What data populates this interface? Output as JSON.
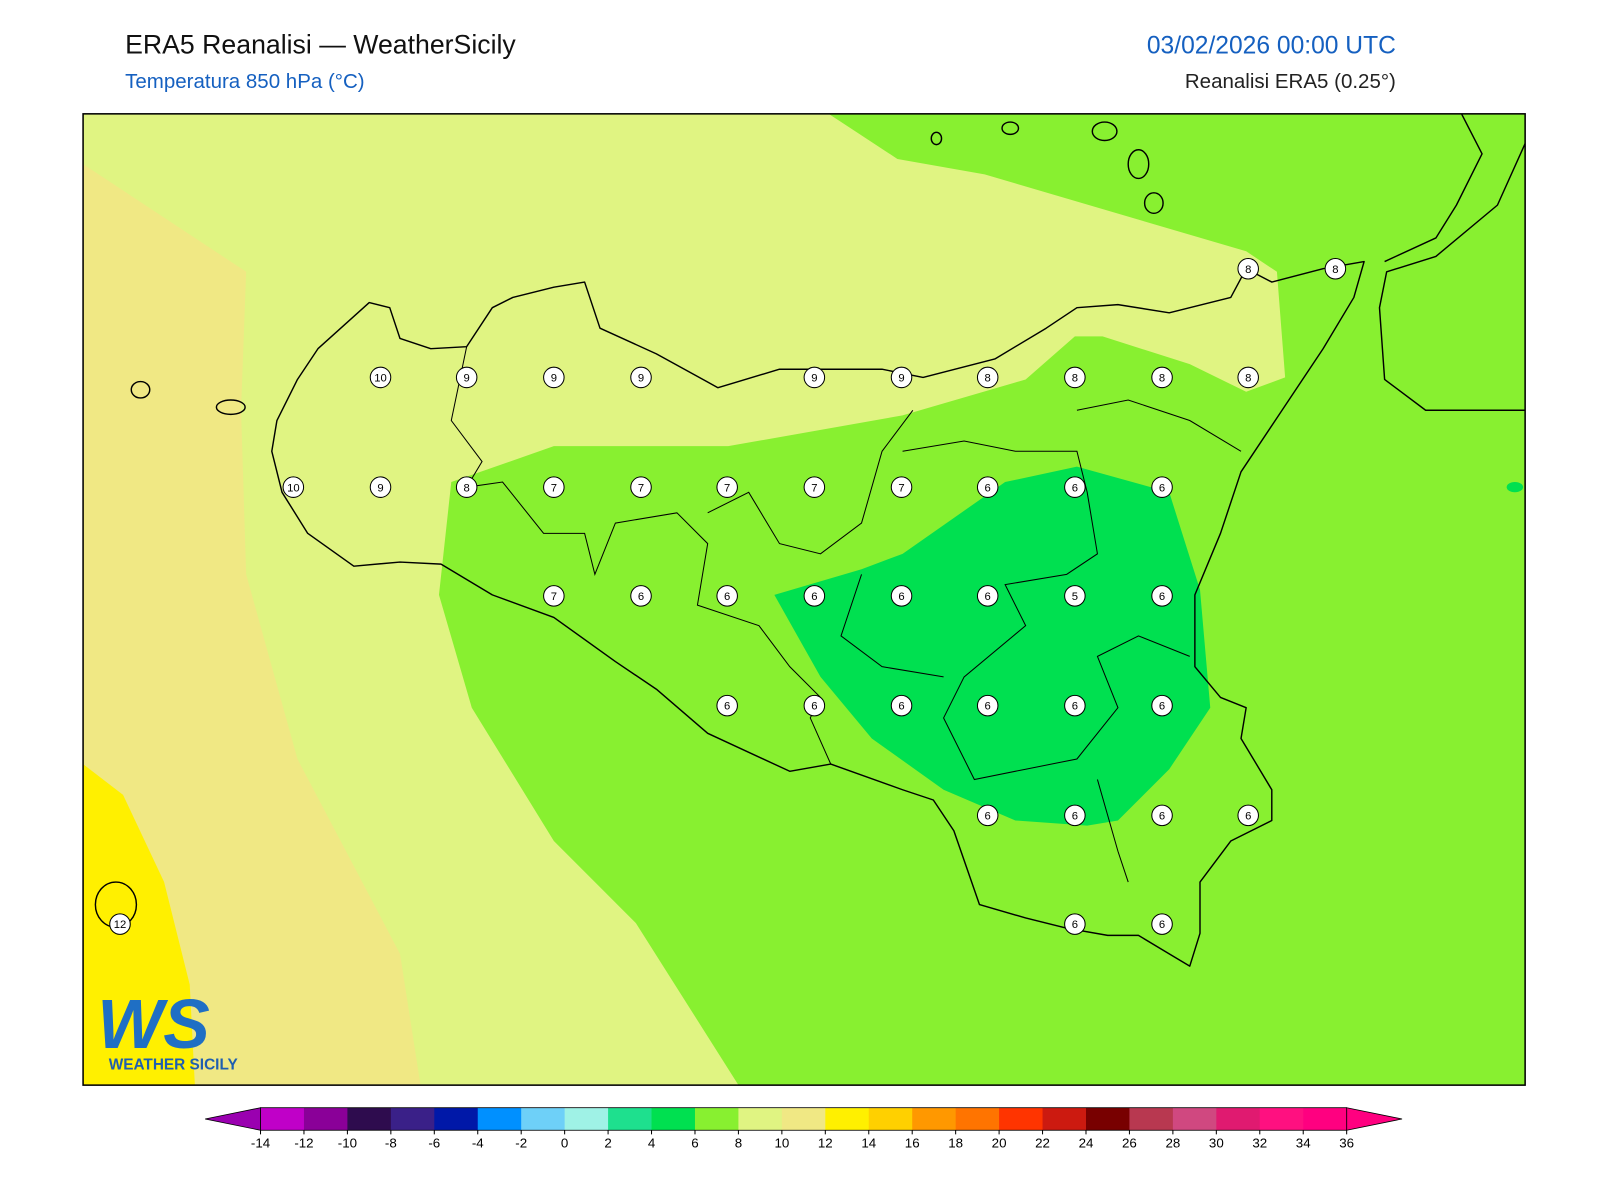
{
  "header": {
    "title": "ERA5 Reanalisi — WeatherSicily",
    "subtitle": "Temperatura 850 hPa (°C)",
    "datetime": "03/02/2026 00:00 UTC",
    "source": "Reanalisi ERA5 (0.25°)"
  },
  "stations": [
    8,
    8,
    10,
    9,
    9,
    9,
    9,
    9,
    8,
    8,
    8,
    8,
    10,
    9,
    8,
    7,
    7,
    7,
    7,
    7,
    6,
    6,
    6,
    7,
    6,
    6,
    6,
    6,
    6,
    5,
    6,
    6,
    6,
    6,
    6,
    6,
    6,
    6,
    6,
    6,
    6,
    12,
    6,
    6
  ],
  "colorbar": {
    "ticks": [
      -14,
      -12,
      -10,
      -8,
      -6,
      -4,
      -2,
      0,
      2,
      4,
      6,
      8,
      10,
      12,
      14,
      16,
      18,
      20,
      22,
      24,
      26,
      28,
      30,
      32,
      34,
      36
    ],
    "colors": [
      "#c000c8",
      "#8a0098",
      "#2e0c4e",
      "#3a2088",
      "#0018a8",
      "#0090ff",
      "#6ed0f8",
      "#9ff2e6",
      "#1ee08e",
      "#00e050",
      "#88f030",
      "#e0f482",
      "#f0e884",
      "#fff000",
      "#ffd000",
      "#ff9800",
      "#ff7400",
      "#ff3400",
      "#cc1a10",
      "#780000",
      "#b83850",
      "#d04880",
      "#e01a70",
      "#ff1080",
      "#ff0080"
    ],
    "under": "#9a00b0",
    "over": "#ff0080"
  },
  "logo": {
    "letters": "WS",
    "text": "WEATHER SICILY"
  }
}
